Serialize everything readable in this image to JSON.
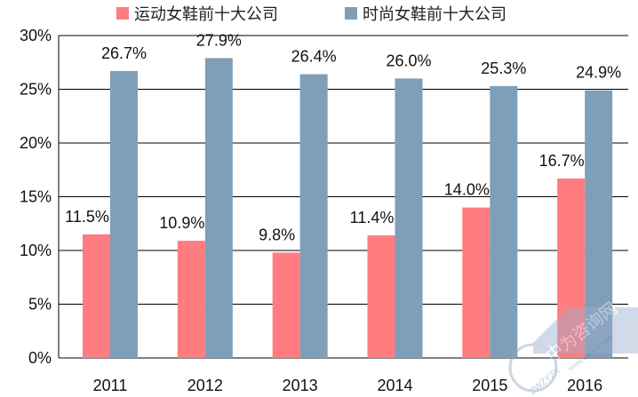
{
  "chart_data": {
    "type": "bar",
    "categories": [
      "2011",
      "2012",
      "2013",
      "2014",
      "2015",
      "2016"
    ],
    "series": [
      {
        "name": "运动女鞋前十大公司",
        "color": "#FF7C80",
        "values": [
          11.5,
          10.9,
          9.8,
          11.4,
          14.0,
          16.7
        ],
        "labels": [
          "11.5%",
          "10.9%",
          "9.8%",
          "11.4%",
          "14.0%",
          "16.7%"
        ]
      },
      {
        "name": "时尚女鞋前十大公司",
        "color": "#7F9FB9",
        "values": [
          26.7,
          27.9,
          26.4,
          26.0,
          25.3,
          24.9
        ],
        "labels": [
          "26.7%",
          "27.9%",
          "26.4%",
          "26.0%",
          "25.3%",
          "24.9%"
        ]
      }
    ],
    "y_ticks": [
      "0%",
      "5%",
      "10%",
      "15%",
      "20%",
      "25%",
      "30%"
    ],
    "ylim": [
      0,
      30
    ],
    "y_unit": "%",
    "grid": true,
    "legend_position": "top-left"
  },
  "watermark": {
    "text": "中为咨询网",
    "subtext": "www.zwzyzx.com",
    "badge": "ZWZYZX"
  }
}
